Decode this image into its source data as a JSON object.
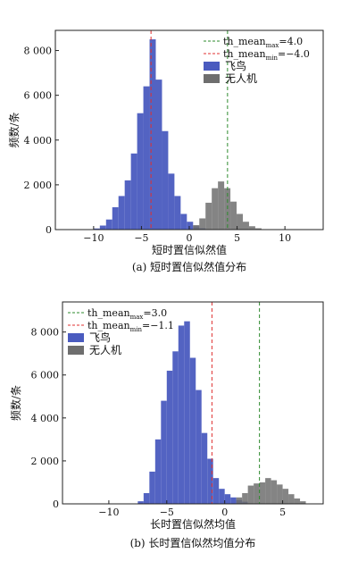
{
  "chart_data": [
    {
      "type": "bar",
      "subplot_label": "(a)",
      "caption": "(a) 短时置信似然值分布",
      "xlabel": "短时置信似然值",
      "ylabel": "频数/条",
      "xlim": [
        -14,
        14
      ],
      "ylim": [
        0,
        8900
      ],
      "xticks": [
        -10,
        -5,
        0,
        5,
        10
      ],
      "xtick_labels": [
        "−10",
        "−5",
        "0",
        "5",
        "10"
      ],
      "yticks": [
        0,
        2000,
        4000,
        6000,
        8000
      ],
      "ytick_labels": [
        "0",
        "2 000",
        "4 000",
        "6 000",
        "8 000"
      ],
      "grid": false,
      "legend_position": "top-right",
      "bin_width": 0.65,
      "series": [
        {
          "name": "飞鸟",
          "color": "#4a5bbf",
          "bins": [
            [
              -10.0,
              50
            ],
            [
              -9.35,
              180
            ],
            [
              -8.7,
              450
            ],
            [
              -8.05,
              1000
            ],
            [
              -7.4,
              1500
            ],
            [
              -6.75,
              2200
            ],
            [
              -6.1,
              3400
            ],
            [
              -5.45,
              5200
            ],
            [
              -4.8,
              6400
            ],
            [
              -4.15,
              8500
            ],
            [
              -3.5,
              6700
            ],
            [
              -2.85,
              4400
            ],
            [
              -2.2,
              2500
            ],
            [
              -1.55,
              1500
            ],
            [
              -0.9,
              700
            ],
            [
              -0.25,
              350
            ],
            [
              0.4,
              150
            ],
            [
              1.05,
              60
            ]
          ]
        },
        {
          "name": "无人机",
          "color": "#6e6e6e",
          "bins": [
            [
              0.4,
              200
            ],
            [
              1.05,
              500
            ],
            [
              1.7,
              1200
            ],
            [
              2.35,
              1850
            ],
            [
              3.0,
              2150
            ],
            [
              3.65,
              1850
            ],
            [
              4.3,
              1250
            ],
            [
              4.95,
              700
            ],
            [
              5.6,
              350
            ],
            [
              6.25,
              150
            ],
            [
              6.9,
              60
            ]
          ]
        }
      ],
      "vlines": [
        {
          "label": "th_mean",
          "subscript": "max",
          "value_text": "=4.0",
          "x": 4.0,
          "color": "#2e8b2e"
        },
        {
          "label": "th_mean",
          "subscript": "min",
          "value_text": "=−4.0",
          "x": -4.0,
          "color": "#e03030"
        }
      ]
    },
    {
      "type": "bar",
      "subplot_label": "(b)",
      "caption": "(b) 长时置信似然均值分布",
      "xlabel": "长时置信似然均值",
      "ylabel": "频数/条",
      "xlim": [
        -14,
        8.5
      ],
      "ylim": [
        0,
        9400
      ],
      "xticks": [
        -10,
        -5,
        0,
        5
      ],
      "xtick_labels": [
        "−10",
        "−5",
        "0",
        "5"
      ],
      "yticks": [
        0,
        2000,
        4000,
        6000,
        8000
      ],
      "ytick_labels": [
        "0",
        "2 000",
        "4 000",
        "6 000",
        "8 000"
      ],
      "grid": false,
      "legend_position": "top-left",
      "bin_width": 0.5,
      "series": [
        {
          "name": "飞鸟",
          "color": "#4a5bbf",
          "bins": [
            [
              -7.5,
              120
            ],
            [
              -7.0,
              500
            ],
            [
              -6.5,
              1500
            ],
            [
              -6.0,
              3000
            ],
            [
              -5.5,
              4800
            ],
            [
              -5.0,
              6200
            ],
            [
              -4.5,
              7100
            ],
            [
              -4.0,
              8300
            ],
            [
              -3.5,
              8500
            ],
            [
              -3.0,
              6800
            ],
            [
              -2.5,
              5300
            ],
            [
              -2.0,
              3300
            ],
            [
              -1.5,
              2100
            ],
            [
              -1.0,
              1200
            ],
            [
              -0.5,
              700
            ],
            [
              0.0,
              450
            ],
            [
              0.5,
              300
            ],
            [
              1.0,
              180
            ],
            [
              1.5,
              100
            ]
          ]
        },
        {
          "name": "无人机",
          "color": "#6e6e6e",
          "bins": [
            [
              1.0,
              300
            ],
            [
              1.5,
              500
            ],
            [
              2.0,
              850
            ],
            [
              2.5,
              950
            ],
            [
              3.0,
              1000
            ],
            [
              3.5,
              1200
            ],
            [
              4.0,
              1100
            ],
            [
              4.5,
              900
            ],
            [
              5.0,
              700
            ],
            [
              5.5,
              450
            ],
            [
              6.0,
              250
            ],
            [
              6.5,
              120
            ]
          ]
        }
      ],
      "vlines": [
        {
          "label": "th_mean",
          "subscript": "max",
          "value_text": "=3.0",
          "x": 3.0,
          "color": "#2e8b2e"
        },
        {
          "label": "th_mean",
          "subscript": "min",
          "value_text": "=−1.1",
          "x": -1.1,
          "color": "#e03030"
        }
      ]
    }
  ]
}
